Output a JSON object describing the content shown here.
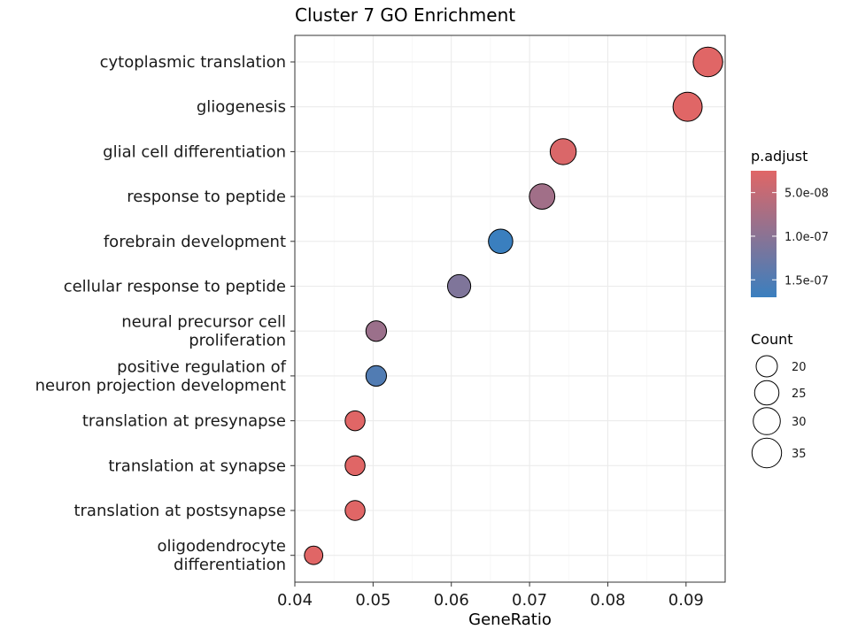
{
  "chart_data": {
    "type": "scatter",
    "title": "Cluster 7 GO Enrichment",
    "xlabel": "GeneRatio",
    "ylabel": "",
    "xlim": [
      0.04,
      0.095
    ],
    "xticks": [
      "0.04",
      "0.05",
      "0.06",
      "0.07",
      "0.08",
      "0.09"
    ],
    "xtick_values": [
      0.04,
      0.05,
      0.06,
      0.07,
      0.08,
      0.09
    ],
    "grid": true,
    "legend_position": "right",
    "categories": [
      [
        "cytoplasmic translation"
      ],
      [
        "gliogenesis"
      ],
      [
        "glial cell differentiation"
      ],
      [
        "response to peptide"
      ],
      [
        "forebrain development"
      ],
      [
        "cellular response to peptide"
      ],
      [
        "neural precursor cell",
        "proliferation"
      ],
      [
        "positive regulation of",
        "neuron projection development"
      ],
      [
        "translation at presynapse"
      ],
      [
        "translation at synapse"
      ],
      [
        "translation at postsynapse"
      ],
      [
        "oligodendrocyte",
        "differentiation"
      ]
    ],
    "points": [
      {
        "gene_ratio": 0.0928,
        "count": 35,
        "p_adjust": 2.5e-08
      },
      {
        "gene_ratio": 0.0902,
        "count": 34,
        "p_adjust": 2.5e-08
      },
      {
        "gene_ratio": 0.0743,
        "count": 28,
        "p_adjust": 3e-08
      },
      {
        "gene_ratio": 0.0716,
        "count": 27,
        "p_adjust": 8e-08
      },
      {
        "gene_ratio": 0.0663,
        "count": 25,
        "p_adjust": 1.7e-07
      },
      {
        "gene_ratio": 0.061,
        "count": 23,
        "p_adjust": 1.1e-07
      },
      {
        "gene_ratio": 0.0504,
        "count": 19,
        "p_adjust": 8.5e-08
      },
      {
        "gene_ratio": 0.0504,
        "count": 19,
        "p_adjust": 1.5e-07
      },
      {
        "gene_ratio": 0.0477,
        "count": 18,
        "p_adjust": 2.5e-08
      },
      {
        "gene_ratio": 0.0477,
        "count": 18,
        "p_adjust": 2.5e-08
      },
      {
        "gene_ratio": 0.0477,
        "count": 18,
        "p_adjust": 2.5e-08
      },
      {
        "gene_ratio": 0.0424,
        "count": 16,
        "p_adjust": 2.5e-08
      }
    ],
    "color_legend": {
      "title": "p.adjust",
      "range": [
        2.5e-08,
        1.7e-07
      ],
      "low_color": "#E06666",
      "high_color": "#3A7FBF",
      "ticks": [
        {
          "value": 5e-08,
          "label": "5.0e-08"
        },
        {
          "value": 1e-07,
          "label": "1.0e-07"
        },
        {
          "value": 1.5e-07,
          "label": "1.5e-07"
        }
      ]
    },
    "size_legend": {
      "title": "Count",
      "items": [
        {
          "value": 20,
          "label": "20"
        },
        {
          "value": 25,
          "label": "25"
        },
        {
          "value": 30,
          "label": "30"
        },
        {
          "value": 35,
          "label": "35"
        }
      ]
    }
  }
}
